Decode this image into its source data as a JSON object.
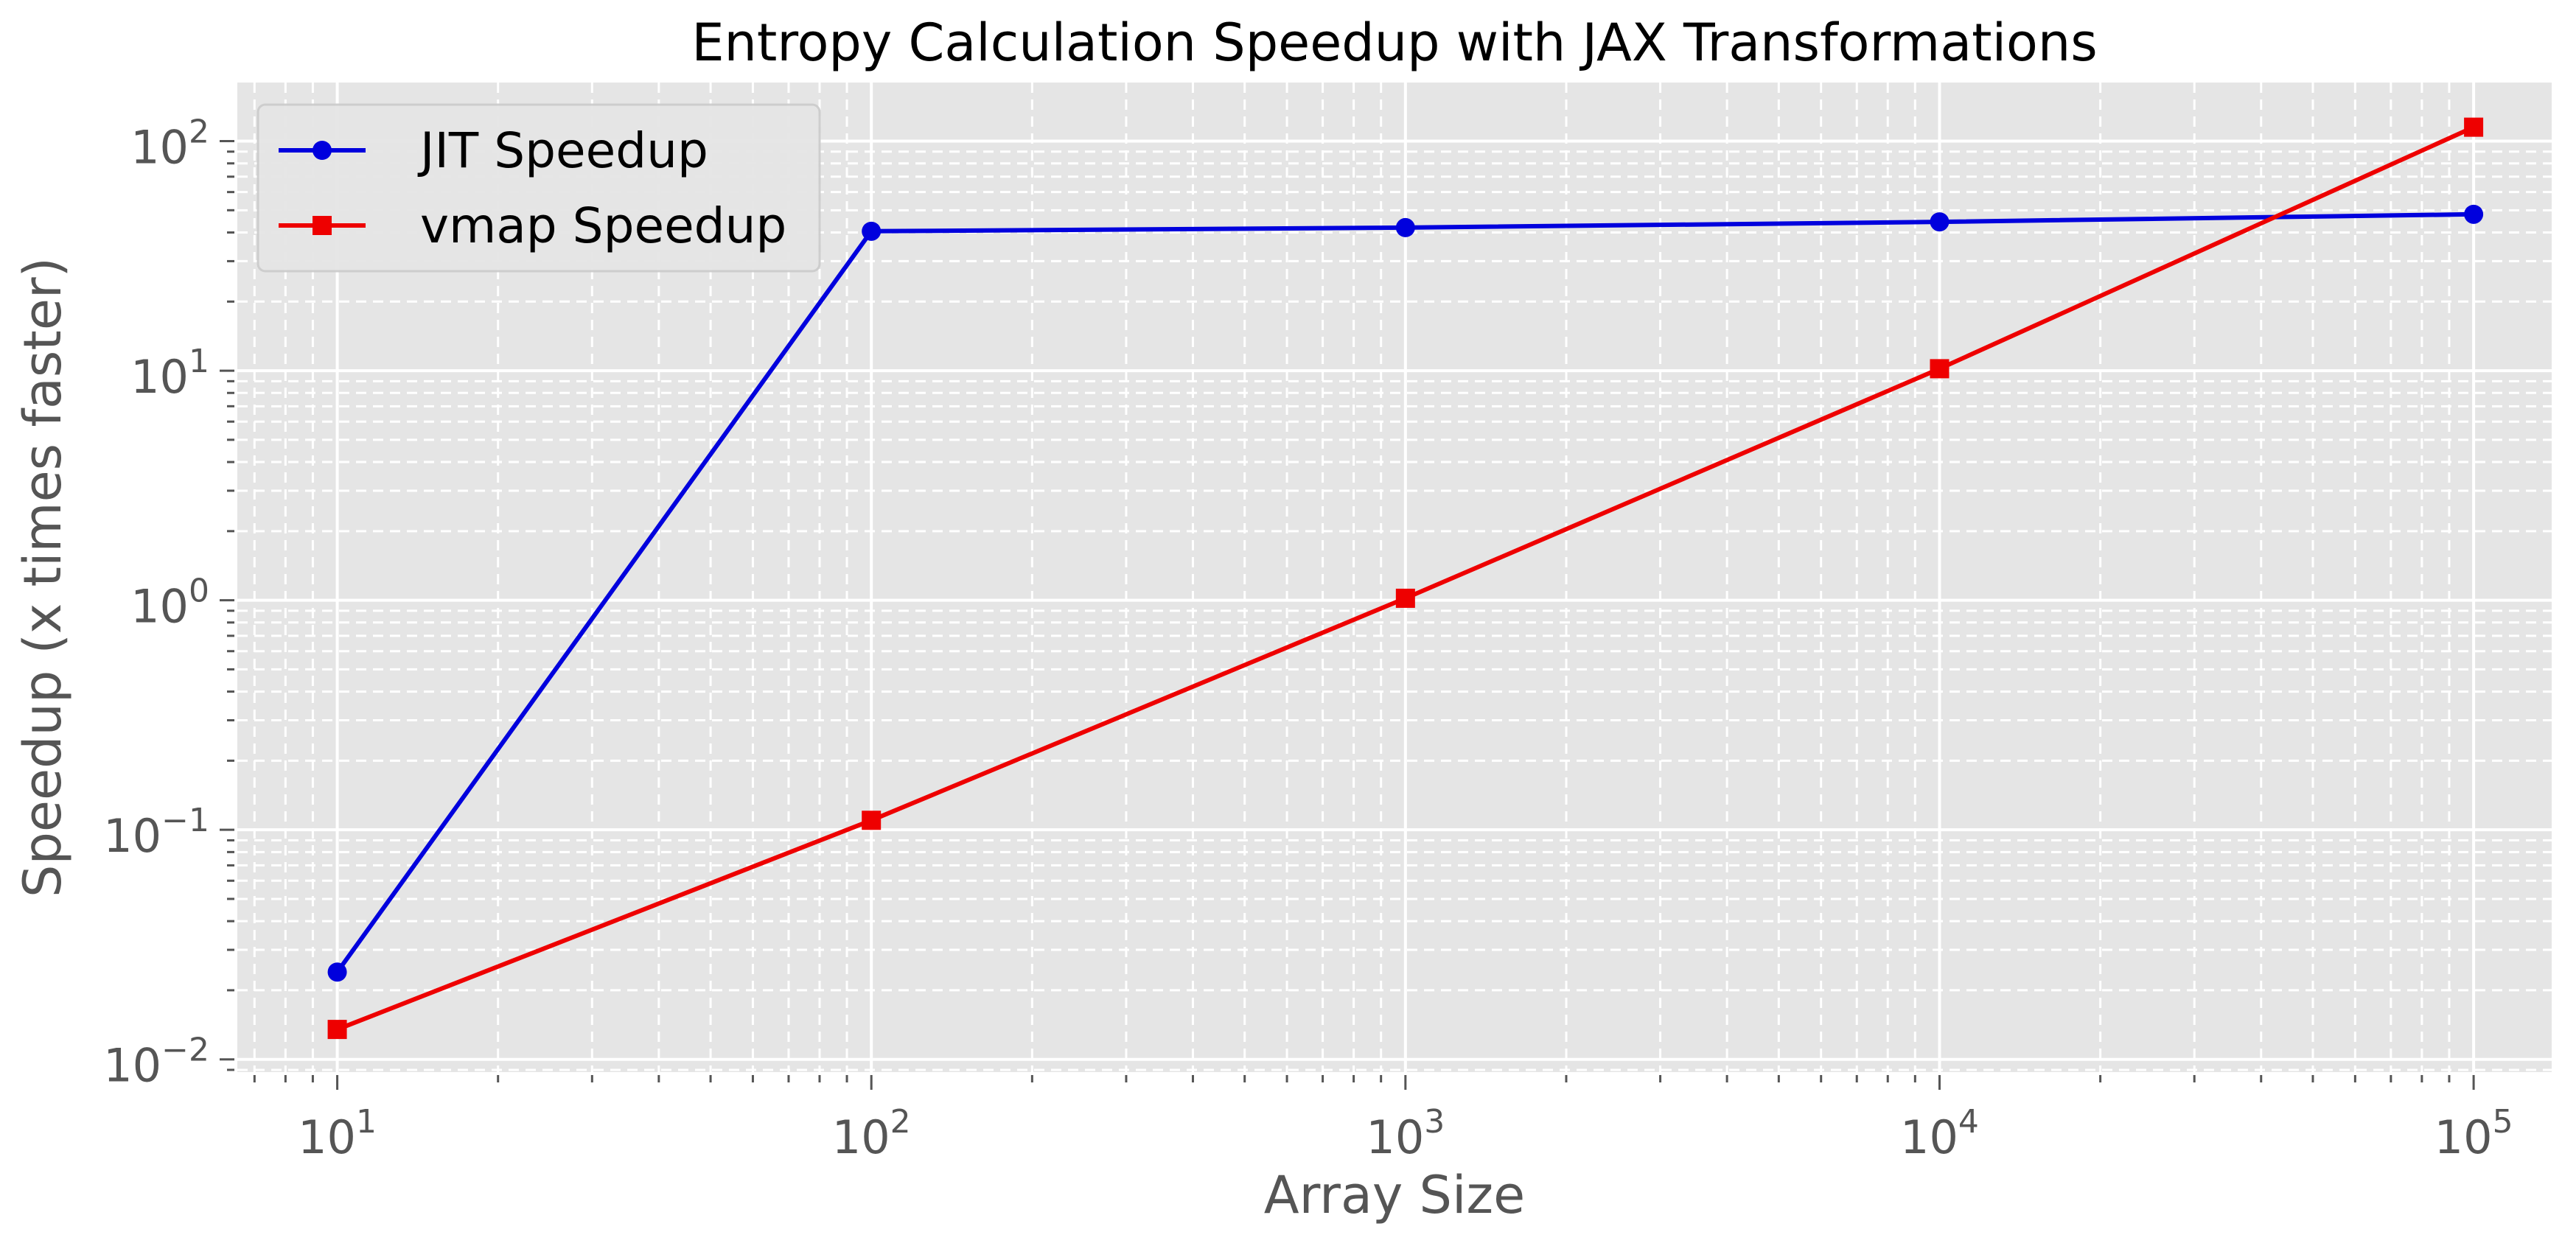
{
  "chart_data": {
    "type": "line",
    "title": "Entropy Calculation Speedup with JAX Transformations",
    "xlabel": "Array Size",
    "ylabel": "Speedup (x times faster)",
    "xscale": "log",
    "yscale": "log",
    "xlim": [
      6.5,
      140000
    ],
    "ylim": [
      0.0088,
      180
    ],
    "grid": true,
    "legend_position": "top-left",
    "x": [
      10,
      100,
      1000,
      10000,
      100000
    ],
    "x_ticks": [
      {
        "value": 10,
        "base": "10",
        "exp": "1"
      },
      {
        "value": 100,
        "base": "10",
        "exp": "2"
      },
      {
        "value": 1000,
        "base": "10",
        "exp": "3"
      },
      {
        "value": 10000,
        "base": "10",
        "exp": "4"
      },
      {
        "value": 100000,
        "base": "10",
        "exp": "5"
      }
    ],
    "y_ticks": [
      {
        "value": 0.01,
        "base": "10",
        "exp": "−2"
      },
      {
        "value": 0.1,
        "base": "10",
        "exp": "−1"
      },
      {
        "value": 1,
        "base": "10",
        "exp": "0"
      },
      {
        "value": 10,
        "base": "10",
        "exp": "1"
      },
      {
        "value": 100,
        "base": "10",
        "exp": "2"
      }
    ],
    "series": [
      {
        "name": "JIT Speedup",
        "color": "#0000dd",
        "marker": "circle",
        "values": [
          0.024,
          40.5,
          42,
          44.5,
          48
        ]
      },
      {
        "name": "vmap Speedup",
        "color": "#ee0000",
        "marker": "square",
        "values": [
          0.0135,
          0.11,
          1.02,
          10.2,
          115
        ]
      }
    ]
  }
}
